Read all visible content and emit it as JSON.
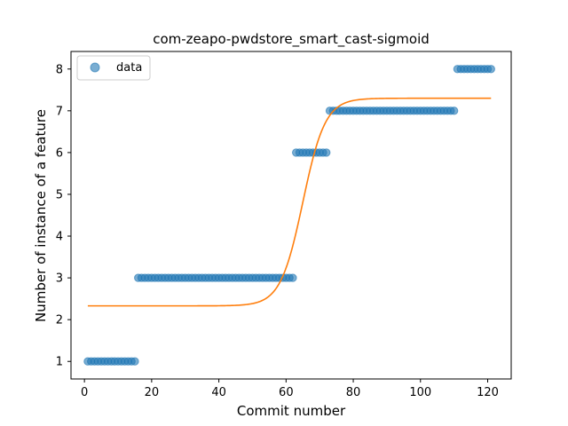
{
  "chart_data": {
    "type": "scatter",
    "title": "com-zeapo-pwdstore_smart_cast-sigmoid",
    "xlabel": "Commit number",
    "ylabel": "Number of instance of a feature",
    "xlim": [
      -4,
      127
    ],
    "ylim": [
      0.58,
      8.42
    ],
    "xticks": [
      0,
      20,
      40,
      60,
      80,
      100,
      120
    ],
    "yticks": [
      1,
      2,
      3,
      4,
      5,
      6,
      7,
      8
    ],
    "legend": {
      "position": "top-left",
      "entries": [
        "data"
      ]
    },
    "colors": {
      "data": "#1f77b4",
      "fit": "#ff7f0e"
    },
    "series": [
      {
        "name": "data",
        "kind": "scatter",
        "segments": [
          {
            "x_from": 1,
            "x_to": 15,
            "y": 1
          },
          {
            "x_from": 16,
            "x_to": 62,
            "y": 3
          },
          {
            "x_from": 63,
            "x_to": 72,
            "y": 6
          },
          {
            "x_from": 73,
            "x_to": 110,
            "y": 7
          },
          {
            "x_from": 111,
            "x_to": 121,
            "y": 8
          }
        ]
      },
      {
        "kind": "line",
        "model": "sigmoid",
        "x_range": [
          1,
          121
        ],
        "params": {
          "lower": 2.33,
          "upper": 7.3,
          "midpoint": 65,
          "steepness": 0.3
        }
      }
    ]
  }
}
